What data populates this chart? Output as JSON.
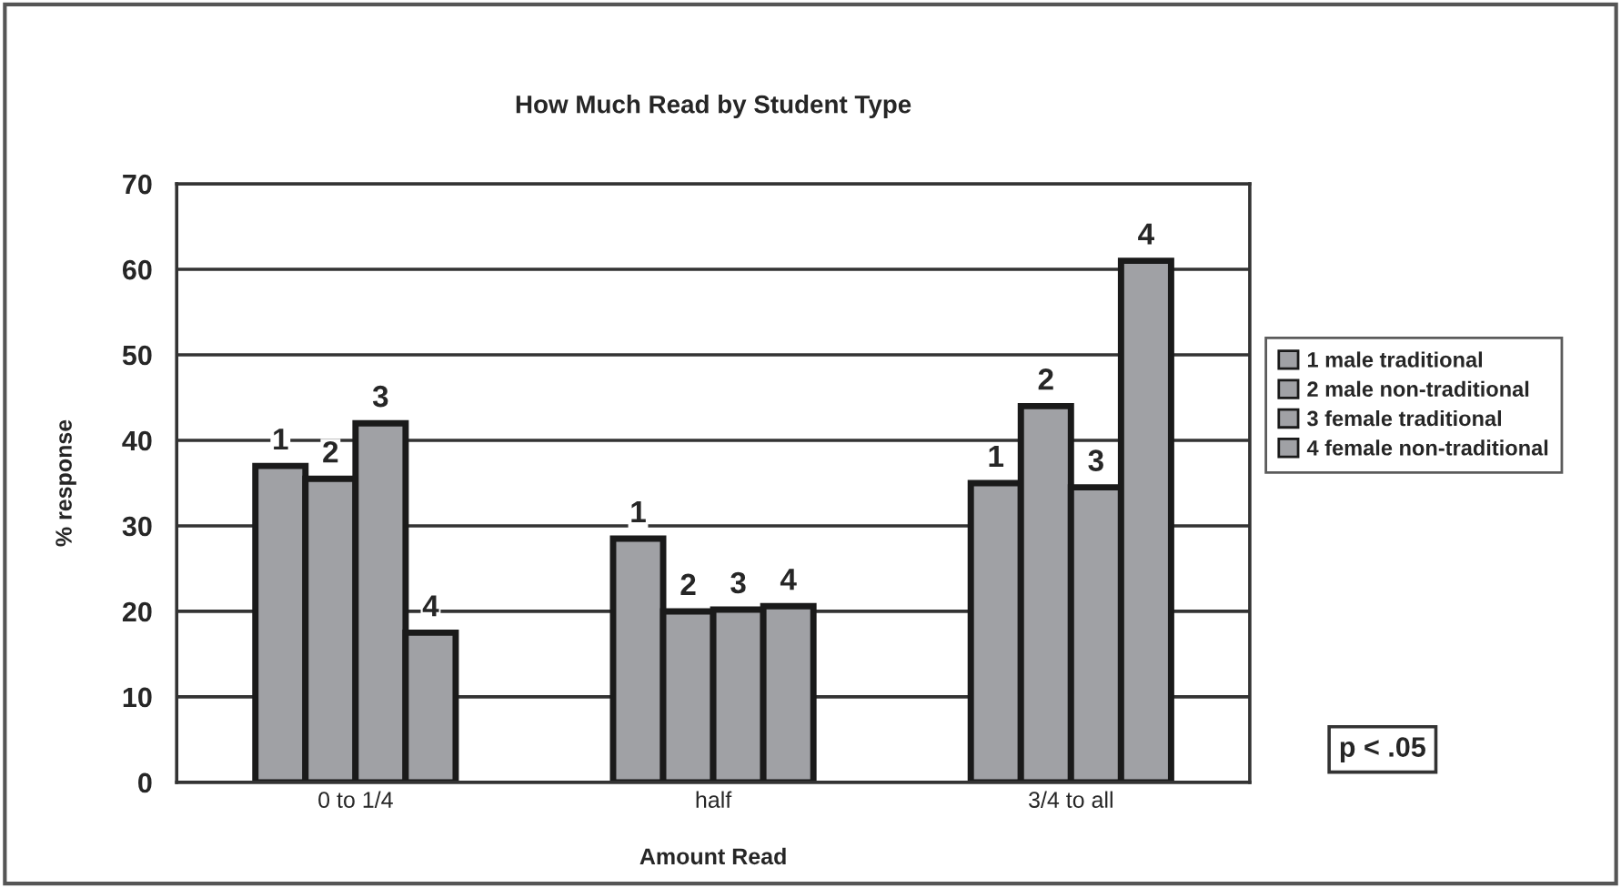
{
  "chart_data": {
    "type": "bar",
    "title": "How Much Read by Student Type",
    "xlabel": "Amount Read",
    "ylabel": "% response",
    "categories": [
      "0 to 1/4",
      "half",
      "3/4 to all"
    ],
    "series": [
      {
        "name": "1 male traditional",
        "color": "#a0a1a5",
        "values": [
          37,
          28.5,
          35
        ]
      },
      {
        "name": "2 male non-traditional",
        "color": "#a0a1a5",
        "values": [
          35.5,
          20,
          44
        ]
      },
      {
        "name": "3 female traditional",
        "color": "#a0a1a5",
        "values": [
          42,
          20.2,
          34.5
        ]
      },
      {
        "name": "4 female non-traditional",
        "color": "#a0a1a5",
        "values": [
          17.5,
          20.6,
          61
        ]
      }
    ],
    "ylim": [
      0,
      70
    ],
    "yticks": [
      0,
      10,
      20,
      30,
      40,
      50,
      60,
      70
    ],
    "grid": "y",
    "legend": "right",
    "annotations": [
      "1",
      "1",
      "1",
      "2",
      "2",
      "2",
      "3",
      "3",
      "3",
      "4",
      "4",
      "4",
      "p < .05"
    ]
  }
}
